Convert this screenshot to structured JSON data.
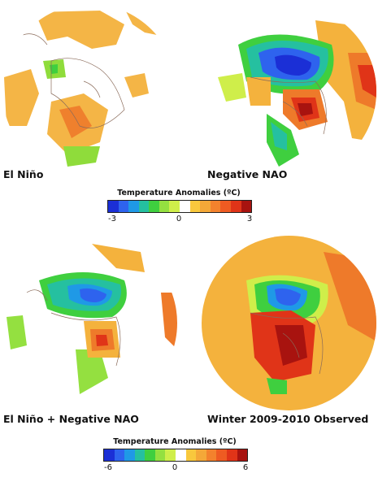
{
  "maps": [
    {
      "id": "el-nino",
      "label": "El Niño"
    },
    {
      "id": "negative-nao",
      "label": "Negative NAO"
    },
    {
      "id": "el-nino-negative-nao",
      "label": "El Niño + Negative NAO"
    },
    {
      "id": "winter-2009-2010-observed",
      "label": "Winter 2009-2010 Observed"
    }
  ],
  "legend_top": {
    "title": "Temperature Anomalies (ºC)",
    "min_label": "-3",
    "mid_label": "0",
    "max_label": "3"
  },
  "legend_bottom": {
    "title": "Temperature Anomalies (ºC)",
    "min_label": "-6",
    "mid_label": "0",
    "max_label": "6"
  },
  "colorscale": [
    "#1b2fd6",
    "#2e63ee",
    "#1f99e6",
    "#25c0a0",
    "#3fcf3f",
    "#94e040",
    "#cfee4a",
    "#ffffff",
    "#f8c83d",
    "#f4a838",
    "#f3822d",
    "#ee5b22",
    "#e03418",
    "#a8130f"
  ]
}
